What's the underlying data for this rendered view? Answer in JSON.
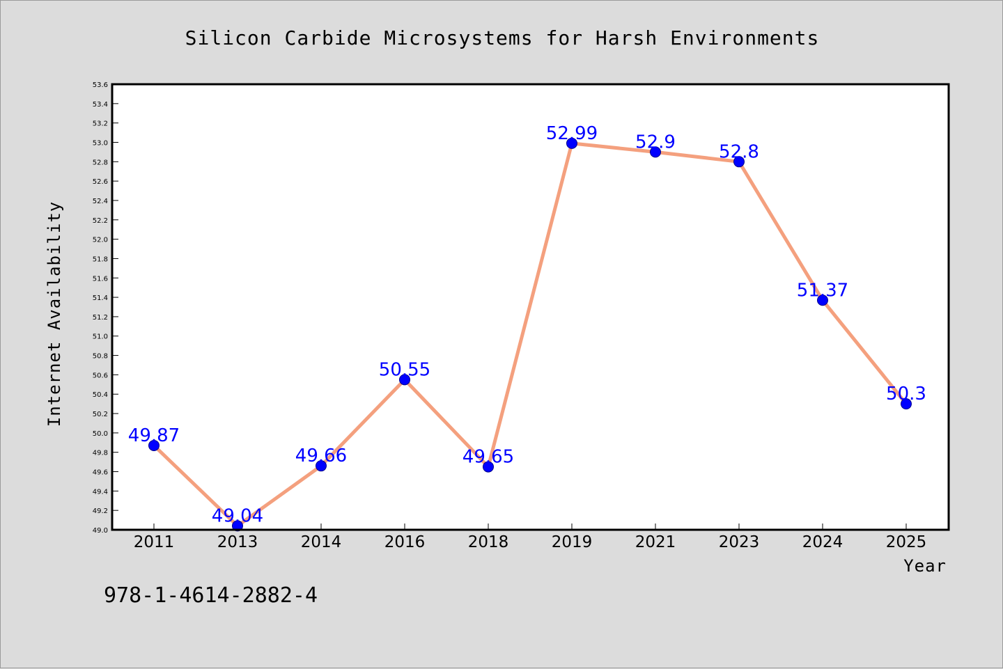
{
  "chart_data": {
    "type": "line",
    "title": "Silicon Carbide Microsystems for Harsh Environments",
    "xlabel": "Year",
    "ylabel": "Internet Availability",
    "categories": [
      "2011",
      "2013",
      "2014",
      "2016",
      "2018",
      "2019",
      "2021",
      "2023",
      "2024",
      "2025"
    ],
    "series": [
      {
        "values": [
          49.87,
          49.04,
          49.66,
          50.55,
          49.65,
          52.99,
          52.9,
          52.8,
          51.37,
          50.3
        ],
        "labels": [
          "49.87",
          "49.04",
          "49.66",
          "50.55",
          "49.65",
          "52.99",
          "52.9",
          "52.8",
          "51.37",
          "50.3"
        ]
      }
    ],
    "ylim": [
      49.0,
      53.6
    ],
    "yticks": [
      "49.0",
      "49.2",
      "49.4",
      "49.6",
      "49.8",
      "50.0",
      "50.2",
      "50.4",
      "50.6",
      "50.8",
      "51.0",
      "51.2",
      "51.4",
      "51.6",
      "51.8",
      "52.0",
      "52.2",
      "52.4",
      "52.6",
      "52.8",
      "53.0",
      "53.2",
      "53.4",
      "53.6"
    ],
    "grid": false,
    "colors": {
      "line": "#f4a07e",
      "marker": "#0000ff",
      "label": "#0000ff",
      "background": "#dcdcdc",
      "plot_background": "#ffffff"
    }
  },
  "footer": {
    "isbn": "978-1-4614-2882-4"
  }
}
